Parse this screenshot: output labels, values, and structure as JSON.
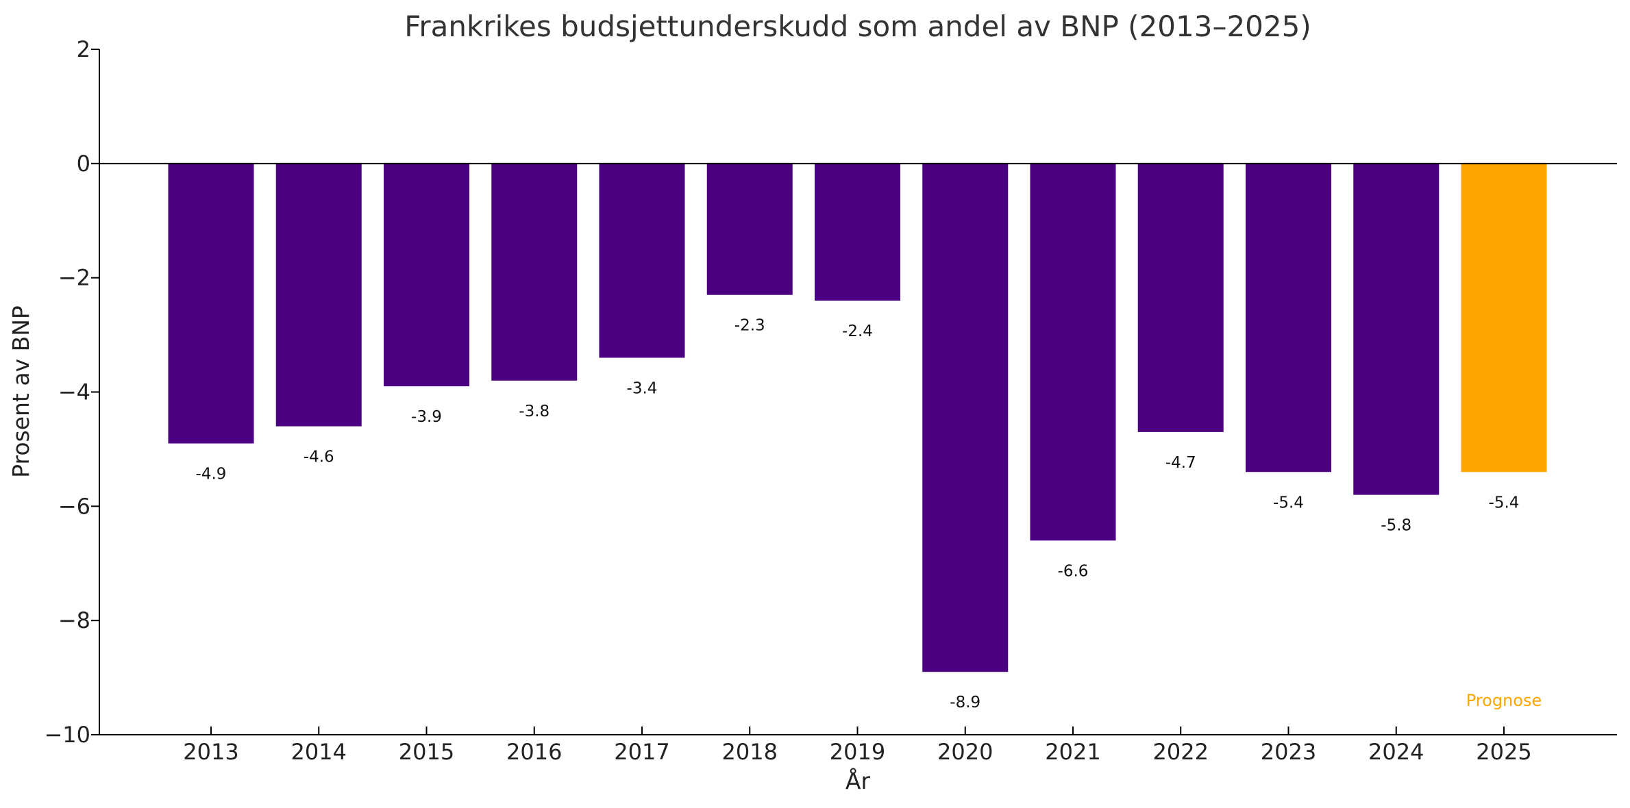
{
  "chart_data": {
    "type": "bar",
    "title": "Frankrikes budsjettunderskudd som andel av BNP (2013–2025)",
    "xlabel": "År",
    "ylabel": "Prosent av BNP",
    "categories": [
      "2013",
      "2014",
      "2015",
      "2016",
      "2017",
      "2018",
      "2019",
      "2020",
      "2021",
      "2022",
      "2023",
      "2024",
      "2025"
    ],
    "values": [
      -4.9,
      -4.6,
      -3.9,
      -3.8,
      -3.4,
      -2.3,
      -2.4,
      -8.9,
      -6.6,
      -4.7,
      -5.4,
      -5.8,
      -5.4
    ],
    "data_labels": [
      "-4.9",
      "-4.6",
      "-3.9",
      "-3.8",
      "-3.4",
      "-2.3",
      "-2.4",
      "-8.9",
      "-6.6",
      "-4.7",
      "-5.4",
      "-5.8",
      "-5.4"
    ],
    "ylim": [
      -10,
      2
    ],
    "yticks": [
      2,
      0,
      -2,
      -4,
      -6,
      -8,
      -10
    ],
    "ytick_labels": [
      "2",
      "0",
      "−2",
      "−4",
      "−6",
      "−8",
      "−10"
    ],
    "grid": false,
    "colors": {
      "bar": "#4B0082",
      "forecast": "#FFA500",
      "axis": "#000000",
      "zero_line": "#000000"
    },
    "highlight": {
      "category": "2025",
      "annotation": "Prognose"
    }
  }
}
